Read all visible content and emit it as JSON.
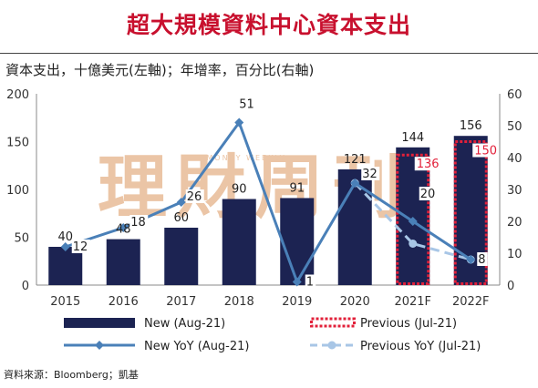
{
  "title": "超大規模資料中心資本支出",
  "subtitle": "資本支出，十億美元(左軸)；年增率，百分比(右軸)",
  "source": "資料來源：Bloomberg；凱基",
  "watermark": {
    "chars": [
      "理",
      "財",
      "周",
      "刊"
    ],
    "small_text": "MONEY WEEKLY"
  },
  "colors": {
    "bar": "#1c2352",
    "previous_border": "#e2203a",
    "new_yoy": "#4a80b8",
    "previous_yoy": "#a8c6e6",
    "title": "#c8102e",
    "watermark": "#ebc5a6"
  },
  "chart_data": {
    "type": "bar",
    "categories": [
      "2015",
      "2016",
      "2017",
      "2018",
      "2019",
      "2020",
      "2021F",
      "2022F"
    ],
    "y_left": {
      "min": 0,
      "max": 200,
      "ticks": [
        "0",
        "50",
        "100",
        "150",
        "200"
      ]
    },
    "y_right": {
      "min": 0,
      "max": 60,
      "ticks": [
        "0",
        "10",
        "20",
        "30",
        "40",
        "50",
        "60"
      ]
    },
    "series": [
      {
        "name": "New (Aug-21)",
        "type": "bar",
        "axis": "left",
        "values": [
          40,
          48,
          60,
          90,
          91,
          121,
          144,
          156
        ],
        "labels": [
          "40",
          "48",
          "60",
          "90",
          "91",
          "121",
          "144",
          "156"
        ]
      },
      {
        "name": "Previous (Jul-21)",
        "type": "bar-outline",
        "axis": "left",
        "values": [
          null,
          null,
          null,
          null,
          null,
          null,
          136,
          150
        ],
        "labels": [
          "",
          "",
          "",
          "",
          "",
          "",
          "136",
          "150"
        ]
      },
      {
        "name": "New YoY (Aug-21)",
        "type": "line",
        "axis": "right",
        "values": [
          12,
          18,
          26,
          51,
          1,
          32,
          20,
          8
        ],
        "labels": [
          "12",
          "18",
          "26",
          "51",
          "1",
          "32",
          "20",
          "8"
        ]
      },
      {
        "name": "Previous  YoY (Jul-21)",
        "type": "dashed-line",
        "axis": "right",
        "values": [
          null,
          null,
          null,
          null,
          null,
          32,
          13,
          8
        ],
        "labels": [
          "",
          "",
          "",
          "",
          "",
          "",
          "",
          ""
        ]
      }
    ],
    "legend": [
      {
        "label": "New (Aug-21)",
        "series": 0
      },
      {
        "label": "Previous (Jul-21)",
        "series": 1
      },
      {
        "label": "New YoY (Aug-21)",
        "series": 2
      },
      {
        "label": "Previous  YoY (Jul-21)",
        "series": 3
      }
    ],
    "legend_position": "bottom",
    "grid": false
  }
}
